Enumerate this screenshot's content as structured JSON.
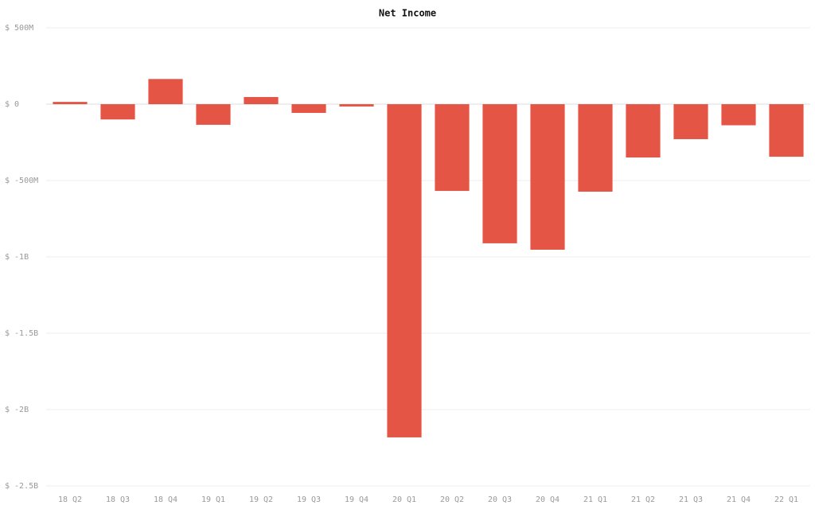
{
  "chart_data": {
    "type": "bar",
    "title": "Net Income",
    "categories": [
      "18 Q2",
      "18 Q3",
      "18 Q4",
      "19 Q1",
      "19 Q2",
      "19 Q3",
      "19 Q4",
      "20 Q1",
      "20 Q2",
      "20 Q3",
      "20 Q4",
      "21 Q1",
      "21 Q2",
      "21 Q3",
      "21 Q4",
      "22 Q1"
    ],
    "values": [
      15000000,
      -100000000,
      165000000,
      -135000000,
      47000000,
      -57000000,
      -15000000,
      -2182000000,
      -568000000,
      -911000000,
      -953000000,
      -573000000,
      -349000000,
      -229000000,
      -138000000,
      -344000000
    ],
    "color": "#e45545",
    "ylim": [
      -2500000000,
      500000000
    ],
    "yticks": [
      {
        "value": 500000000,
        "label": "$ 500M"
      },
      {
        "value": 0,
        "label": "$ 0"
      },
      {
        "value": -500000000,
        "label": "$ -500M"
      },
      {
        "value": -1000000000,
        "label": "$ -1B"
      },
      {
        "value": -1500000000,
        "label": "$ -1.5B"
      },
      {
        "value": -2000000000,
        "label": "$ -2B"
      },
      {
        "value": -2500000000,
        "label": "$ -2.5B"
      }
    ],
    "grid": true
  }
}
